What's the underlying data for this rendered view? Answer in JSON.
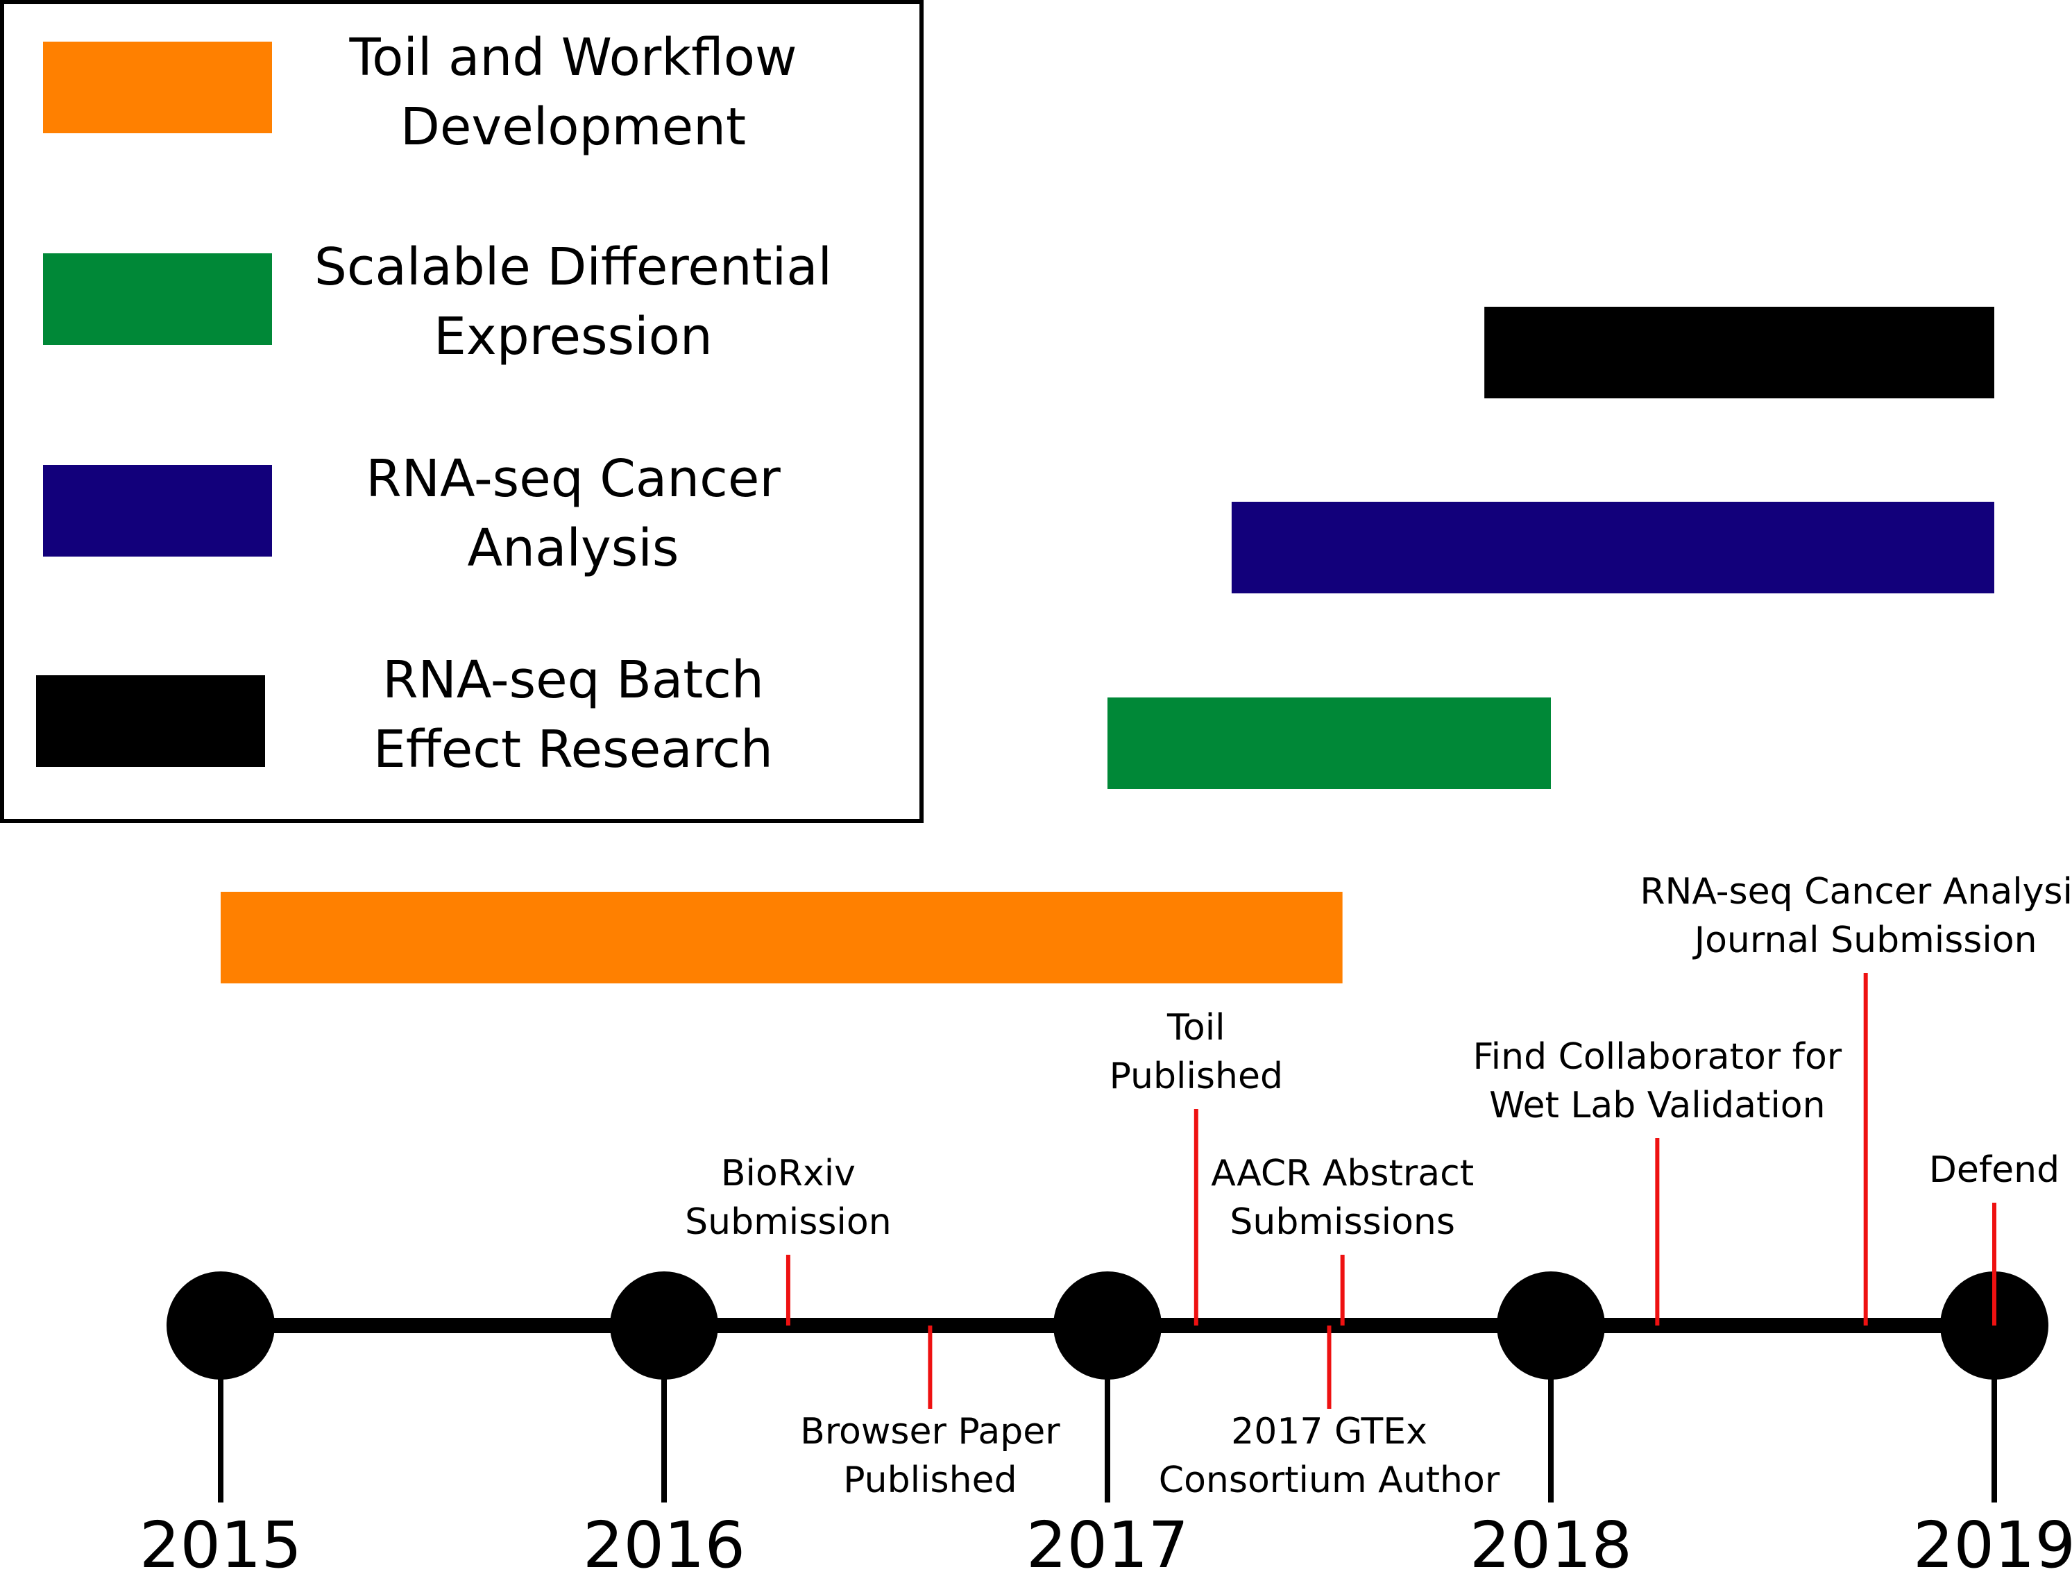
{
  "colors": {
    "toil": "#FF8000",
    "diffexp": "#008837",
    "cancer": "#12007B",
    "batch": "#000000",
    "marker": "#EE1111",
    "axis": "#000000"
  },
  "chart_data": {
    "type": "timeline",
    "x_axis": {
      "ticks": [
        2015,
        2016,
        2017,
        2018,
        2019
      ],
      "range": [
        2015,
        2019
      ]
    },
    "legend": {
      "placement": "top-left",
      "entries": [
        {
          "key": "toil",
          "lines": [
            "Toil and Workflow",
            "Development"
          ]
        },
        {
          "key": "diffexp",
          "lines": [
            "Scalable Differential",
            "Expression"
          ]
        },
        {
          "key": "cancer",
          "lines": [
            "RNA-seq Cancer",
            "Analysis"
          ]
        },
        {
          "key": "batch",
          "lines": [
            "RNA-seq Batch",
            "Effect Research"
          ]
        }
      ]
    },
    "bars": [
      {
        "key": "batch",
        "start": 2017.85,
        "end": 2019.0
      },
      {
        "key": "cancer",
        "start": 2017.28,
        "end": 2019.0
      },
      {
        "key": "diffexp",
        "start": 2017.0,
        "end": 2018.0
      },
      {
        "key": "toil",
        "start": 2015.0,
        "end": 2017.53
      }
    ],
    "events": [
      {
        "date": 2016.28,
        "side": "above",
        "lines": [
          "BioRxiv",
          "Submission"
        ]
      },
      {
        "date": 2016.6,
        "side": "below",
        "lines": [
          "Browser Paper",
          "Published"
        ]
      },
      {
        "date": 2017.2,
        "side": "above",
        "lines": [
          "Toil",
          "Published"
        ]
      },
      {
        "date": 2017.53,
        "side": "above",
        "lines": [
          "AACR Abstract",
          "Submissions"
        ]
      },
      {
        "date": 2017.5,
        "side": "below",
        "lines": [
          "2017 GTEx",
          "Consortium Author"
        ]
      },
      {
        "date": 2018.24,
        "side": "above",
        "lines": [
          "Find Collaborator for",
          "Wet Lab Validation"
        ]
      },
      {
        "date": 2018.71,
        "side": "above",
        "lines": [
          "RNA-seq Cancer Analysis",
          "Journal Submission"
        ]
      },
      {
        "date": 2019.0,
        "side": "above",
        "lines": [
          "Defend"
        ]
      }
    ]
  }
}
